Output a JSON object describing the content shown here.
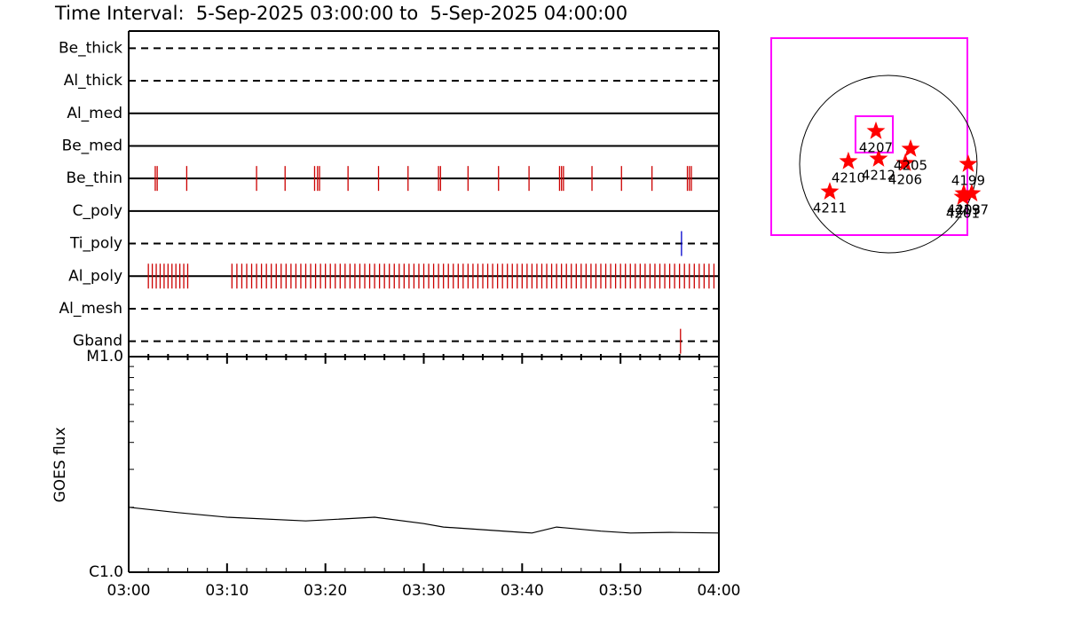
{
  "chart_data": [
    {
      "type": "event-raster",
      "title": "Time Interval:  5-Sep-2025 03:00:00 to  5-Sep-2025 04:00:00",
      "series": [
        {
          "name": "Be_thick",
          "style": "dashed",
          "color": "#cc0000",
          "values": []
        },
        {
          "name": "Al_thick",
          "style": "dashed",
          "color": "#cc0000",
          "values": []
        },
        {
          "name": "Al_med",
          "style": "solid",
          "color": "#cc0000",
          "values": []
        },
        {
          "name": "Be_med",
          "style": "solid",
          "color": "#cc0000",
          "values": []
        },
        {
          "name": "Be_thin",
          "style": "solid",
          "color": "#cc0000",
          "values": [
            2.7,
            2.9,
            5.9,
            13.0,
            15.9,
            18.9,
            19.2,
            19.4,
            22.3,
            25.4,
            28.4,
            31.5,
            31.7,
            34.5,
            37.6,
            40.7,
            43.8,
            44.0,
            44.2,
            47.1,
            50.1,
            53.2,
            56.8,
            57.0,
            57.2
          ]
        },
        {
          "name": "C_poly",
          "style": "solid",
          "color": "#cc0000",
          "values": []
        },
        {
          "name": "Ti_poly",
          "style": "dashed",
          "color": "#0000cc",
          "values": [
            56.2
          ]
        },
        {
          "name": "Al_poly",
          "style": "solid",
          "color": "#cc0000",
          "values": [
            2.0,
            2.4,
            2.8,
            3.2,
            3.6,
            4.0,
            4.4,
            4.8,
            5.2,
            5.6,
            6.0,
            10.5,
            11.0,
            11.5,
            12.0,
            12.5,
            13.0,
            13.5,
            14.0,
            14.5,
            15.0,
            15.5,
            16.0,
            16.5,
            17.0,
            17.5,
            18.0,
            18.5,
            19.0,
            19.5,
            20.0,
            20.5,
            21.0,
            21.5,
            22.0,
            22.5,
            23.0,
            23.5,
            24.0,
            24.5,
            25.0,
            25.5,
            26.0,
            26.5,
            27.0,
            27.5,
            28.0,
            28.5,
            29.0,
            29.5,
            30.0,
            30.5,
            31.0,
            31.5,
            32.0,
            32.5,
            33.0,
            33.5,
            34.0,
            34.5,
            35.0,
            35.5,
            36.0,
            36.5,
            37.0,
            37.5,
            38.0,
            38.5,
            39.0,
            39.5,
            40.0,
            40.5,
            41.0,
            41.5,
            42.0,
            42.5,
            43.0,
            43.5,
            44.0,
            44.5,
            45.0,
            45.5,
            46.0,
            46.5,
            47.0,
            47.5,
            48.0,
            48.5,
            49.0,
            49.5,
            50.0,
            50.5,
            51.0,
            51.5,
            52.0,
            52.5,
            53.0,
            53.5,
            54.0,
            54.5,
            55.0,
            55.5,
            56.0,
            56.5,
            57.0,
            57.5,
            58.0,
            58.5,
            59.0,
            59.5
          ]
        },
        {
          "name": "Al_mesh",
          "style": "dashed",
          "color": "#cc0000",
          "values": []
        },
        {
          "name": "Gband",
          "style": "dashed",
          "color": "#cc0000",
          "values": [
            56.1
          ]
        }
      ]
    },
    {
      "type": "line",
      "ylabel": "GOES flux",
      "log_y": true,
      "color": "#000000",
      "x": [
        0,
        5,
        10,
        18,
        25,
        30,
        32,
        40,
        41,
        43.5,
        48,
        51,
        55,
        60
      ],
      "values": [
        2e-06,
        1.89e-06,
        1.8e-06,
        1.73e-06,
        1.8e-06,
        1.68e-06,
        1.62e-06,
        1.53e-06,
        1.52e-06,
        1.62e-06,
        1.55e-06,
        1.52e-06,
        1.53e-06,
        1.52e-06
      ],
      "xlim": [
        0,
        60
      ],
      "xticks": [
        {
          "value": 0,
          "label": "03:00"
        },
        {
          "value": 10,
          "label": "03:10"
        },
        {
          "value": 20,
          "label": "03:20"
        },
        {
          "value": 30,
          "label": "03:30"
        },
        {
          "value": 40,
          "label": "03:40"
        },
        {
          "value": 50,
          "label": "03:50"
        },
        {
          "value": 60,
          "label": "04:00"
        }
      ],
      "xminorticks": [
        2,
        4,
        6,
        8,
        12,
        14,
        16,
        18,
        22,
        24,
        26,
        28,
        32,
        34,
        36,
        38,
        42,
        44,
        46,
        48,
        52,
        54,
        56,
        58
      ],
      "ylim": [
        1e-06,
        1e-05
      ],
      "yticks": [
        {
          "value": 1e-06,
          "label": "C1.0"
        },
        {
          "value": 1e-05,
          "label": "M1.0"
        }
      ],
      "yminorticks": [
        2e-06,
        3e-06,
        4e-06,
        5e-06,
        6e-06,
        7e-06,
        8e-06,
        9e-06
      ]
    },
    {
      "type": "map",
      "categories": [
        "4207",
        "4210",
        "4212",
        "4205",
        "4206",
        "4199",
        "4211",
        "4201",
        "4203",
        "4197"
      ],
      "x": [
        -133,
        -428,
        -105,
        238,
        181,
        855,
        -627,
        798,
        808,
        893
      ],
      "values": [
        352,
        29,
        57,
        162,
        10,
        0,
        -295,
        -352,
        -314,
        -314
      ],
      "color": "#ff0000",
      "xlim": [
        -1254,
        846
      ],
      "ylim": [
        -760,
        1349
      ],
      "disk_radius": 950,
      "fov": {
        "xlim": [
          -352,
          48
        ],
        "ylim": [
          124,
          513
        ]
      }
    }
  ]
}
